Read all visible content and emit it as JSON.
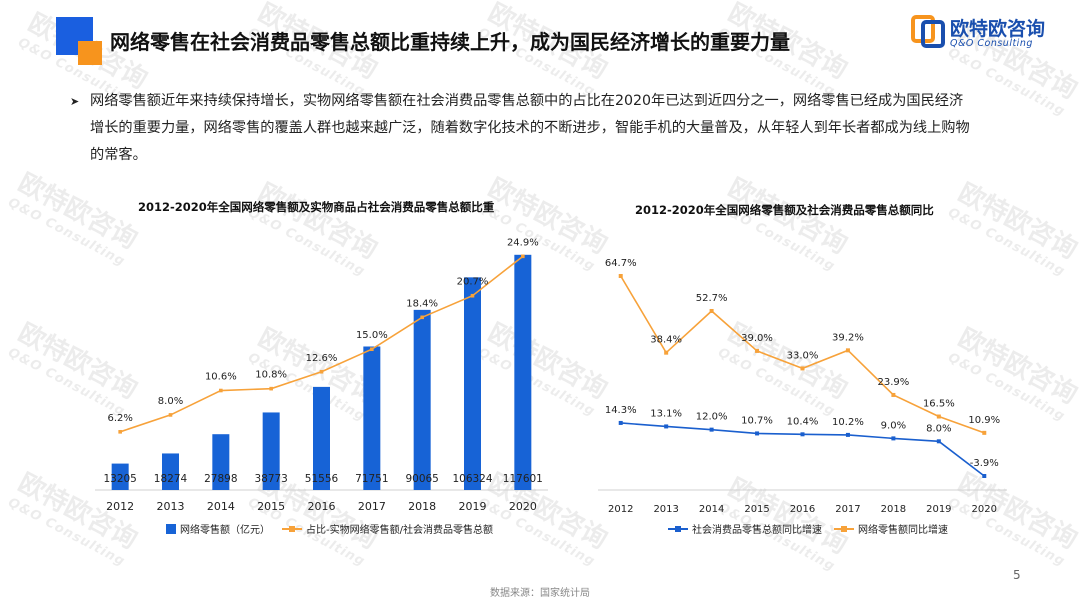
{
  "header": {
    "title": "网络零售在社会消费品零售总额比重持续上升，成为国民经济增长的重要力量",
    "brand_name": "欧特欧咨询",
    "brand_sub": "Q&O Consulting",
    "colors": {
      "brand_blue": "#1a5fe0",
      "brand_orange": "#f7941d"
    }
  },
  "bullet": {
    "marker": "➤",
    "text": "网络零售额近年来持续保持增长，实物网络零售额在社会消费品零售总额中的占比在2020年已达到近四分之一，网络零售已经成为国民经济增长的重要力量，网络零售的覆盖人群也越来越广泛，随着数字化技术的不断进步，智能手机的大量普及，从年轻人到年长者都成为线上购物的常客。"
  },
  "chart_data": [
    {
      "type": "bar+line",
      "title": "2012-2020年全国网络零售额及实物商品占社会消费品零售总额比重",
      "categories": [
        "2012",
        "2013",
        "2014",
        "2015",
        "2016",
        "2017",
        "2018",
        "2019",
        "2020"
      ],
      "series": [
        {
          "name": "网络零售额（亿元）",
          "kind": "bar",
          "color": "#1763d6",
          "values": [
            13205,
            18274,
            27898,
            38773,
            51556,
            71751,
            90065,
            106324,
            117601
          ],
          "labels": [
            "13205",
            "18274",
            "27898",
            "38773",
            "51556",
            "71751",
            "90065",
            "106324",
            "117601"
          ]
        },
        {
          "name": "占比-实物网络零售额/社会消费品零售总额",
          "kind": "line",
          "color": "#f7a23a",
          "values": [
            6.2,
            8.0,
            10.6,
            10.8,
            12.6,
            15.0,
            18.4,
            20.7,
            24.9
          ],
          "labels": [
            "6.2%",
            "8.0%",
            "10.6%",
            "10.8%",
            "12.6%",
            "15.0%",
            "18.4%",
            "20.7%",
            "24.9%"
          ]
        }
      ],
      "bar_ylim": [
        0,
        120000
      ],
      "line_ylim": [
        0,
        26
      ]
    },
    {
      "type": "line",
      "title": "2012-2020年全国网络零售额及社会消费品零售总额同比",
      "categories": [
        "2012",
        "2013",
        "2014",
        "2015",
        "2016",
        "2017",
        "2018",
        "2019",
        "2020"
      ],
      "series": [
        {
          "name": "社会消费品零售总额同比增速",
          "color": "#1a5fce",
          "values": [
            14.3,
            13.1,
            12.0,
            10.7,
            10.4,
            10.2,
            9.0,
            8.0,
            -3.9
          ],
          "labels": [
            "14.3%",
            "13.1%",
            "12.0%",
            "10.7%",
            "10.4%",
            "10.2%",
            "9.0%",
            "8.0%",
            "-3.9%"
          ]
        },
        {
          "name": "网络零售额同比增速",
          "color": "#f7a23a",
          "values": [
            64.7,
            38.4,
            52.7,
            39.0,
            33.0,
            39.2,
            23.9,
            16.5,
            10.9
          ],
          "labels": [
            "64.7%",
            "38.4%",
            "52.7%",
            "39.0%",
            "33.0%",
            "39.2%",
            "23.9%",
            "16.5%",
            "10.9%"
          ]
        }
      ],
      "ylim": [
        -6,
        70
      ]
    }
  ],
  "footer": {
    "page_number": "5",
    "source": "数据来源：国家统计局"
  },
  "watermark": {
    "text": "欧特欧咨询",
    "sub": "Q&O Consulting"
  }
}
